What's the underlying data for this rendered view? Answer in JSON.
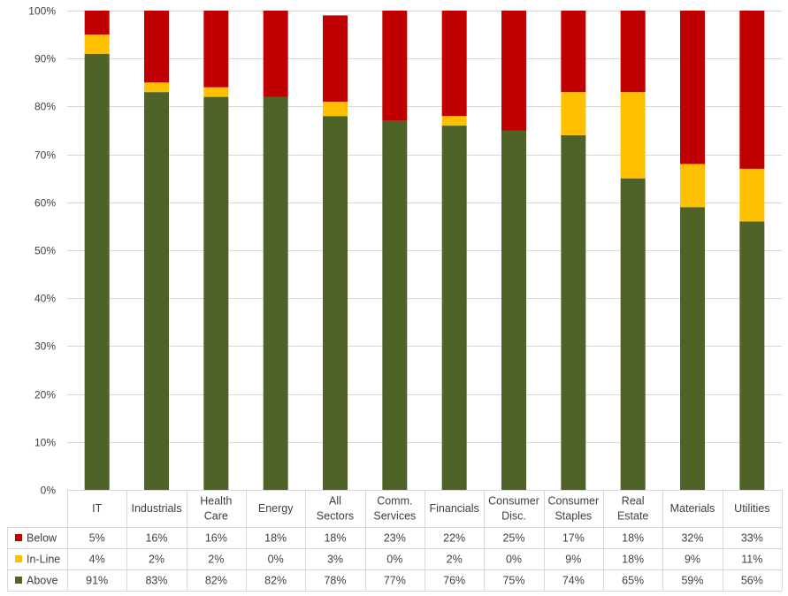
{
  "chart_data": {
    "type": "bar",
    "stacked": true,
    "percent_stacked": true,
    "categories": [
      [
        "IT"
      ],
      [
        "Industrials"
      ],
      [
        "Health",
        "Care"
      ],
      [
        "Energy"
      ],
      [
        "All",
        "Sectors"
      ],
      [
        "Comm.",
        "Services"
      ],
      [
        "Financials"
      ],
      [
        "Consumer",
        "Disc."
      ],
      [
        "Consumer",
        "Staples"
      ],
      [
        "Real",
        "Estate"
      ],
      [
        "Materials"
      ],
      [
        "Utilities"
      ]
    ],
    "series": [
      {
        "name": "Below",
        "color": "#c00000",
        "values": [
          5,
          16,
          16,
          18,
          18,
          23,
          22,
          25,
          17,
          18,
          32,
          33
        ],
        "labels": [
          "5%",
          "16%",
          "16%",
          "18%",
          "18%",
          "23%",
          "22%",
          "25%",
          "17%",
          "18%",
          "32%",
          "33%"
        ]
      },
      {
        "name": "In-Line",
        "color": "#ffc000",
        "values": [
          4,
          2,
          2,
          0,
          3,
          0,
          2,
          0,
          9,
          18,
          9,
          11
        ],
        "labels": [
          "4%",
          "2%",
          "2%",
          "0%",
          "3%",
          "0%",
          "2%",
          "0%",
          "9%",
          "18%",
          "9%",
          "11%"
        ]
      },
      {
        "name": "Above",
        "color": "#4f6228",
        "values": [
          91,
          83,
          82,
          82,
          78,
          77,
          76,
          75,
          74,
          65,
          59,
          56
        ],
        "labels": [
          "91%",
          "83%",
          "82%",
          "82%",
          "78%",
          "77%",
          "76%",
          "75%",
          "74%",
          "65%",
          "59%",
          "56%"
        ]
      }
    ],
    "stack_order_bottom_to_top": [
      "Above",
      "In-Line",
      "Below"
    ],
    "y_ticks": [
      "0%",
      "10%",
      "20%",
      "30%",
      "40%",
      "50%",
      "60%",
      "70%",
      "80%",
      "90%",
      "100%"
    ],
    "ylim": [
      0,
      100
    ],
    "grid": true,
    "legend": "data-table-left",
    "has_data_table": true,
    "title": "",
    "xlabel": "",
    "ylabel": ""
  }
}
